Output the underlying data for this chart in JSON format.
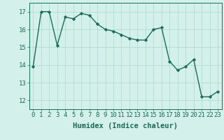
{
  "x": [
    0,
    1,
    2,
    3,
    4,
    5,
    6,
    7,
    8,
    9,
    10,
    11,
    12,
    13,
    14,
    15,
    16,
    17,
    18,
    19,
    20,
    21,
    22,
    23
  ],
  "y": [
    13.9,
    17.0,
    17.0,
    15.1,
    16.7,
    16.6,
    16.9,
    16.8,
    16.3,
    16.0,
    15.9,
    15.7,
    15.5,
    15.4,
    15.4,
    16.0,
    16.1,
    14.2,
    13.7,
    13.9,
    14.3,
    12.2,
    12.2,
    12.5
  ],
  "line_color": "#1a6b5a",
  "marker": "D",
  "marker_size": 2.2,
  "bg_color": "#d4f0ea",
  "grid_color": "#b8ddd6",
  "xlabel": "Humidex (Indice chaleur)",
  "ylim": [
    11.5,
    17.5
  ],
  "xlim": [
    -0.5,
    23.5
  ],
  "yticks": [
    12,
    13,
    14,
    15,
    16,
    17
  ],
  "xticks": [
    0,
    1,
    2,
    3,
    4,
    5,
    6,
    7,
    8,
    9,
    10,
    11,
    12,
    13,
    14,
    15,
    16,
    17,
    18,
    19,
    20,
    21,
    22,
    23
  ],
  "line_width": 1.0,
  "xlabel_fontsize": 7.5,
  "tick_fontsize": 6.5
}
